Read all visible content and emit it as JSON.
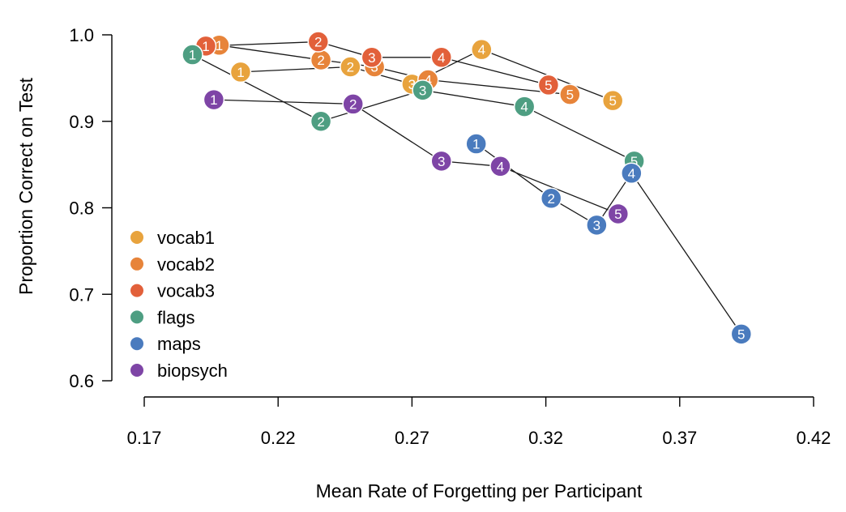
{
  "chart_data": {
    "type": "scatter",
    "title": "",
    "xlabel": "Mean Rate of Forgetting per Participant",
    "ylabel": "Proportion Correct on Test",
    "xlim": [
      0.17,
      0.42
    ],
    "ylim": [
      0.6,
      1.0
    ],
    "x_ticks": [
      "0.17",
      "0.22",
      "0.27",
      "0.32",
      "0.37",
      "0.42"
    ],
    "y_ticks": [
      "0.6",
      "0.7",
      "0.8",
      "0.9",
      "1.0"
    ],
    "grid": false,
    "legend_position": "bottom-left",
    "series": [
      {
        "name": "vocab1",
        "color": "#E8A33D",
        "points": [
          {
            "label": "1",
            "x": 0.206,
            "y": 0.957
          },
          {
            "label": "2",
            "x": 0.247,
            "y": 0.963
          },
          {
            "label": "3",
            "x": 0.27,
            "y": 0.943
          },
          {
            "label": "4",
            "x": 0.296,
            "y": 0.983
          },
          {
            "label": "5",
            "x": 0.345,
            "y": 0.924
          }
        ]
      },
      {
        "name": "vocab2",
        "color": "#E7843A",
        "points": [
          {
            "label": "1",
            "x": 0.198,
            "y": 0.988
          },
          {
            "label": "2",
            "x": 0.236,
            "y": 0.971
          },
          {
            "label": "3",
            "x": 0.256,
            "y": 0.963
          },
          {
            "label": "4",
            "x": 0.276,
            "y": 0.948
          },
          {
            "label": "5",
            "x": 0.329,
            "y": 0.931
          }
        ]
      },
      {
        "name": "vocab3",
        "color": "#E2603A",
        "points": [
          {
            "label": "1",
            "x": 0.193,
            "y": 0.987
          },
          {
            "label": "2",
            "x": 0.235,
            "y": 0.992
          },
          {
            "label": "3",
            "x": 0.255,
            "y": 0.974
          },
          {
            "label": "4",
            "x": 0.281,
            "y": 0.974
          },
          {
            "label": "5",
            "x": 0.321,
            "y": 0.942
          }
        ]
      },
      {
        "name": "flags",
        "color": "#4E9E82",
        "points": [
          {
            "label": "1",
            "x": 0.188,
            "y": 0.977
          },
          {
            "label": "2",
            "x": 0.236,
            "y": 0.9
          },
          {
            "label": "3",
            "x": 0.274,
            "y": 0.936
          },
          {
            "label": "4",
            "x": 0.312,
            "y": 0.917
          },
          {
            "label": "5",
            "x": 0.353,
            "y": 0.854
          }
        ]
      },
      {
        "name": "maps",
        "color": "#4A7BBE",
        "points": [
          {
            "label": "1",
            "x": 0.294,
            "y": 0.874
          },
          {
            "label": "2",
            "x": 0.322,
            "y": 0.811
          },
          {
            "label": "3",
            "x": 0.339,
            "y": 0.78
          },
          {
            "label": "4",
            "x": 0.352,
            "y": 0.84
          },
          {
            "label": "5",
            "x": 0.393,
            "y": 0.654
          }
        ]
      },
      {
        "name": "biopsych",
        "color": "#7E45A6",
        "points": [
          {
            "label": "1",
            "x": 0.196,
            "y": 0.925
          },
          {
            "label": "2",
            "x": 0.248,
            "y": 0.92
          },
          {
            "label": "3",
            "x": 0.281,
            "y": 0.854
          },
          {
            "label": "4",
            "x": 0.303,
            "y": 0.848
          },
          {
            "label": "5",
            "x": 0.347,
            "y": 0.793
          }
        ]
      }
    ]
  }
}
